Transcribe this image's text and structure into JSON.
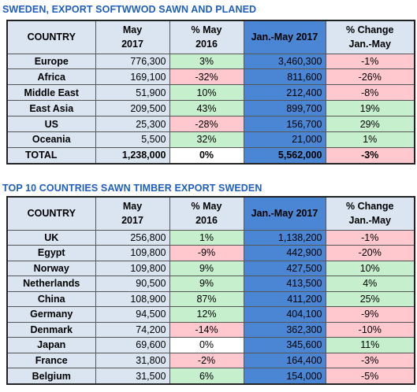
{
  "table1": {
    "title": "SWEDEN, EXPORT SOFTWWOD SAWN AND PLANED",
    "headers": {
      "country": "COUNTRY",
      "may_l1": "May",
      "may_l2": "2017",
      "pct_l1": "% May",
      "pct_l2": "2016",
      "jan": "Jan.-May 2017",
      "chg_l1": "% Change",
      "chg_l2": "Jan.-May"
    },
    "rows": [
      {
        "country": "Europe",
        "may": "776,300",
        "pct": "3%",
        "jan": "3,460,300",
        "chg": "-1%"
      },
      {
        "country": "Africa",
        "may": "169,100",
        "pct": "-32%",
        "jan": "811,600",
        "chg": "-26%"
      },
      {
        "country": "Middle East",
        "may": "51,900",
        "pct": "10%",
        "jan": "212,400",
        "chg": "-8%"
      },
      {
        "country": "East Asia",
        "may": "209,500",
        "pct": "43%",
        "jan": "899,700",
        "chg": "19%"
      },
      {
        "country": "US",
        "may": "25,300",
        "pct": "-28%",
        "jan": "156,700",
        "chg": "29%"
      },
      {
        "country": "Oceania",
        "may": "5,500",
        "pct": "32%",
        "jan": "21,000",
        "chg": "1%"
      }
    ],
    "total": {
      "country": "TOTAL",
      "may": "1,238,000",
      "pct": "0%",
      "jan": "5,562,000",
      "chg": "-3%"
    }
  },
  "table2": {
    "title": "TOP 10 COUNTRIES SAWN TIMBER EXPORT SWEDEN",
    "headers": {
      "country": "COUNTRY",
      "may_l1": "May",
      "may_l2": "2017",
      "pct_l1": "% May",
      "pct_l2": "2016",
      "jan": "Jan.-May 2017",
      "chg_l1": "% Change",
      "chg_l2": "Jan.-May"
    },
    "rows": [
      {
        "country": "UK",
        "may": "256,800",
        "pct": "1%",
        "jan": "1,138,200",
        "chg": "-1%"
      },
      {
        "country": "Egypt",
        "may": "109,800",
        "pct": "-9%",
        "jan": "442,900",
        "chg": "-20%"
      },
      {
        "country": "Norway",
        "may": "109,800",
        "pct": "9%",
        "jan": "427,500",
        "chg": "10%"
      },
      {
        "country": "Netherlands",
        "may": "90,500",
        "pct": "9%",
        "jan": "413,500",
        "chg": "4%"
      },
      {
        "country": "China",
        "may": "108,900",
        "pct": "87%",
        "jan": "411,200",
        "chg": "25%"
      },
      {
        "country": "Germany",
        "may": "94,500",
        "pct": "12%",
        "jan": "404,100",
        "chg": "-9%"
      },
      {
        "country": "Denmark",
        "may": "74,200",
        "pct": "-14%",
        "jan": "362,300",
        "chg": "-10%"
      },
      {
        "country": "Japan",
        "may": "69,600",
        "pct": "0%",
        "jan": "345,600",
        "chg": "11%"
      },
      {
        "country": "France",
        "may": "31,800",
        "pct": "-2%",
        "jan": "164,400",
        "chg": "-3%"
      },
      {
        "country": "Belgium",
        "may": "31,500",
        "pct": "6%",
        "jan": "154,000",
        "chg": "-5%"
      }
    ]
  },
  "colors": {
    "title": "#1f5fbf",
    "header_light": "#dbe5f1",
    "header_dark": "#4a86d4",
    "positive": "#c6efce",
    "negative": "#ffc7ce"
  }
}
